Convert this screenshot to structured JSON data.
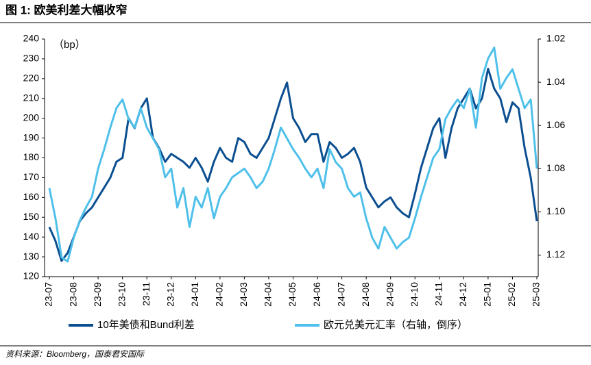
{
  "chart_data": {
    "type": "line",
    "title": "图 1:  欧美利差大幅收窄",
    "y_unit_label": "（bp）",
    "source": "资料来源：Bloomberg，国泰君安国际",
    "categories": [
      "23-07",
      null,
      null,
      null,
      "23-08",
      null,
      null,
      null,
      "23-09",
      null,
      null,
      null,
      "23-10",
      null,
      null,
      null,
      "23-11",
      null,
      null,
      null,
      "23-12",
      null,
      null,
      null,
      "24-01",
      null,
      null,
      null,
      "24-02",
      null,
      null,
      null,
      "24-03",
      null,
      null,
      null,
      "24-04",
      null,
      null,
      null,
      "24-05",
      null,
      null,
      null,
      "24-06",
      null,
      null,
      null,
      "24-07",
      null,
      null,
      null,
      "24-08",
      null,
      null,
      null,
      "24-09",
      null,
      null,
      null,
      "24-10",
      null,
      null,
      null,
      "24-11",
      null,
      null,
      null,
      "24-12",
      null,
      null,
      null,
      "25-01",
      null,
      null,
      null,
      "25-02",
      null,
      null,
      null,
      "25-03"
    ],
    "series": [
      {
        "name": "10年美债和Bund利差",
        "color": "#0b4f91",
        "values": [
          145,
          138,
          128,
          132,
          140,
          148,
          152,
          155,
          160,
          165,
          170,
          178,
          180,
          200,
          195,
          205,
          210,
          190,
          185,
          178,
          182,
          180,
          178,
          175,
          180,
          175,
          168,
          178,
          185,
          180,
          178,
          190,
          188,
          182,
          180,
          185,
          190,
          200,
          210,
          218,
          200,
          195,
          188,
          192,
          192,
          178,
          188,
          185,
          180,
          182,
          185,
          178,
          165,
          160,
          155,
          158,
          160,
          155,
          152,
          150,
          162,
          175,
          185,
          195,
          200,
          180,
          195,
          205,
          210,
          215,
          205,
          210,
          225,
          215,
          210,
          198,
          208,
          205,
          185,
          170,
          148
        ]
      },
      {
        "name": "欧元兑美元汇率（右轴，倒序）",
        "color": "#4fc0ea",
        "axis": "y2",
        "values": [
          1.089,
          1.103,
          1.121,
          1.123,
          1.112,
          1.104,
          1.098,
          1.093,
          1.08,
          1.071,
          1.061,
          1.052,
          1.048,
          1.057,
          1.061,
          1.052,
          1.061,
          1.066,
          1.071,
          1.084,
          1.08,
          1.098,
          1.089,
          1.107,
          1.093,
          1.098,
          1.089,
          1.103,
          1.093,
          1.089,
          1.084,
          1.082,
          1.08,
          1.084,
          1.089,
          1.086,
          1.08,
          1.071,
          1.061,
          1.066,
          1.071,
          1.075,
          1.08,
          1.084,
          1.08,
          1.089,
          1.071,
          1.077,
          1.08,
          1.089,
          1.093,
          1.091,
          1.103,
          1.112,
          1.117,
          1.107,
          1.112,
          1.117,
          1.114,
          1.112,
          1.103,
          1.093,
          1.084,
          1.075,
          1.071,
          1.057,
          1.052,
          1.048,
          1.052,
          1.043,
          1.061,
          1.038,
          1.029,
          1.024,
          1.043,
          1.038,
          1.034,
          1.043,
          1.052,
          1.048,
          1.08
        ]
      }
    ],
    "ylim": [
      120,
      240
    ],
    "yticks": [
      120,
      130,
      140,
      150,
      160,
      170,
      180,
      190,
      200,
      210,
      220,
      230,
      240
    ],
    "y2lim": [
      1.02,
      1.13
    ],
    "y2_inverted": true,
    "y2ticks": [
      {
        "value": 1.02,
        "label": "1.02"
      },
      {
        "value": 1.04,
        "label": "1.04"
      },
      {
        "value": 1.06,
        "label": "1.06"
      },
      {
        "value": 1.08,
        "label": "1.08"
      },
      {
        "value": 1.1,
        "label": "1.10"
      },
      {
        "value": 1.12,
        "label": "1.12"
      }
    ],
    "grid": false,
    "legend": "bottom"
  }
}
